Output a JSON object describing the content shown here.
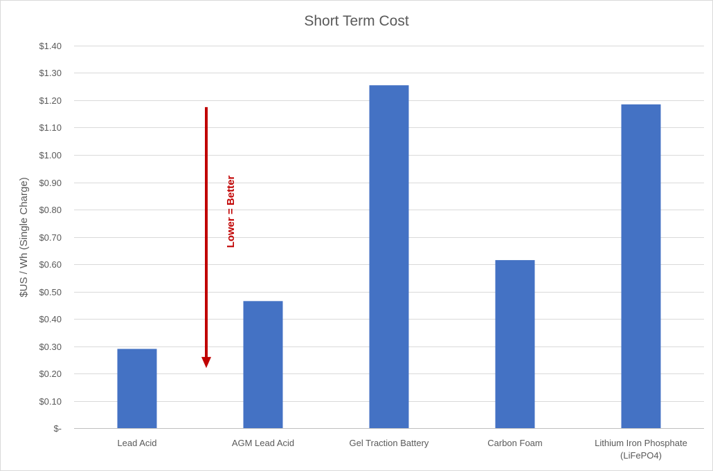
{
  "chart_data": {
    "type": "bar",
    "title": "Short Term Cost",
    "ylabel": "$US / Wh (Single Charge)",
    "xlabel": "",
    "categories": [
      [
        "Lead Acid"
      ],
      [
        "AGM Lead Acid"
      ],
      [
        "Gel Traction Battery"
      ],
      [
        "Carbon Foam"
      ],
      [
        "Lithium Iron Phosphate",
        "(LiFePO4)"
      ]
    ],
    "values": [
      0.29,
      0.465,
      1.255,
      0.615,
      1.185
    ],
    "ylim": [
      0,
      1.4
    ],
    "ytick_values": [
      0,
      0.1,
      0.2,
      0.3,
      0.4,
      0.5,
      0.6,
      0.7,
      0.8,
      0.9,
      1.0,
      1.1,
      1.2,
      1.3,
      1.4
    ],
    "ytick_labels": [
      "$-",
      "$0.10",
      "$0.20",
      "$0.30",
      "$0.40",
      "$0.50",
      "$0.60",
      "$0.70",
      "$0.80",
      "$0.90",
      "$1.00",
      "$1.10",
      "$1.20",
      "$1.30",
      "$1.40"
    ],
    "grid": true,
    "legend": "none",
    "bar_color": "#4472c4",
    "annotation": {
      "text": "Lower = Better",
      "color": "#c00000",
      "arrow_from_value": 1.175,
      "arrow_to_value": 0.22,
      "arrow_between_categories": [
        0,
        1
      ]
    }
  }
}
